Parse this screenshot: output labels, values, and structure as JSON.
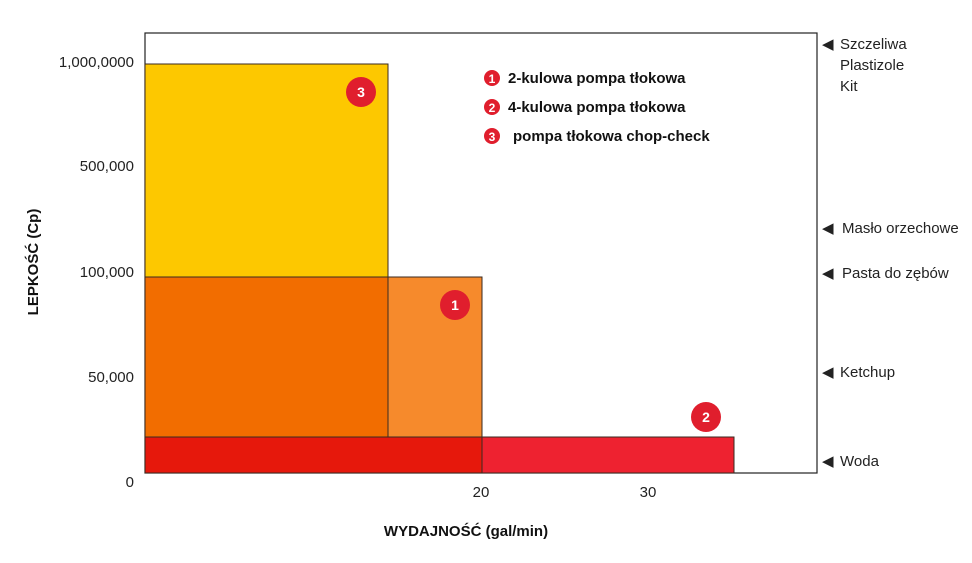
{
  "chart_data": {
    "type": "bar",
    "xlabel": "WYDAJNOŚĆ (gal/min)",
    "ylabel": "LEPKOŚĆ  (Cp)",
    "y_ticks": [
      "1,000,0000",
      "500,000",
      "100,000",
      "50,000",
      "0"
    ],
    "x_ticks": [
      "20",
      "30"
    ],
    "legend_placement": "top-right",
    "legend": [
      {
        "marker": "1",
        "label": "2-kulowa pompa tłokowa"
      },
      {
        "marker": "2",
        "label": "4-kulowa pompa tłokowa"
      },
      {
        "marker": "3",
        "label": "pompa tłokowa chop-check"
      }
    ],
    "colors": {
      "yellow": "#fdc800",
      "orange": "#f26d00",
      "orange_light": "#f68a2c",
      "red": "#e6180c",
      "red_light": "#ee2230",
      "badge": "#e01e2d"
    },
    "reference_levels": [
      {
        "labels": [
          "Szczeliwa",
          "Plastizole",
          "Kit"
        ]
      },
      {
        "labels": [
          "Masło orzechowe"
        ]
      },
      {
        "labels": [
          "Pasta do zębów"
        ]
      },
      {
        "labels": [
          "Ketchup"
        ]
      },
      {
        "labels": [
          "Woda"
        ]
      }
    ],
    "pump_ranges": [
      {
        "marker": "3",
        "max_flow_gpm": 15,
        "max_viscosity_cp": 1000000
      },
      {
        "marker": "1",
        "max_flow_gpm": 20,
        "max_viscosity_cp": 100000
      },
      {
        "marker": "2",
        "max_flow_gpm": 35,
        "max_viscosity_cp": 10000
      }
    ],
    "regions": [
      {
        "color": "yellow",
        "flow": [
          0,
          15
        ],
        "viscosity": [
          100000,
          1000000
        ]
      },
      {
        "color": "orange",
        "flow": [
          0,
          15
        ],
        "viscosity": [
          10000,
          100000
        ]
      },
      {
        "color": "orange_light",
        "flow": [
          15,
          20
        ],
        "viscosity": [
          10000,
          100000
        ]
      },
      {
        "color": "red",
        "flow": [
          0,
          20
        ],
        "viscosity": [
          0,
          10000
        ]
      },
      {
        "color": "red_light",
        "flow": [
          20,
          35
        ],
        "viscosity": [
          0,
          10000
        ]
      }
    ]
  }
}
